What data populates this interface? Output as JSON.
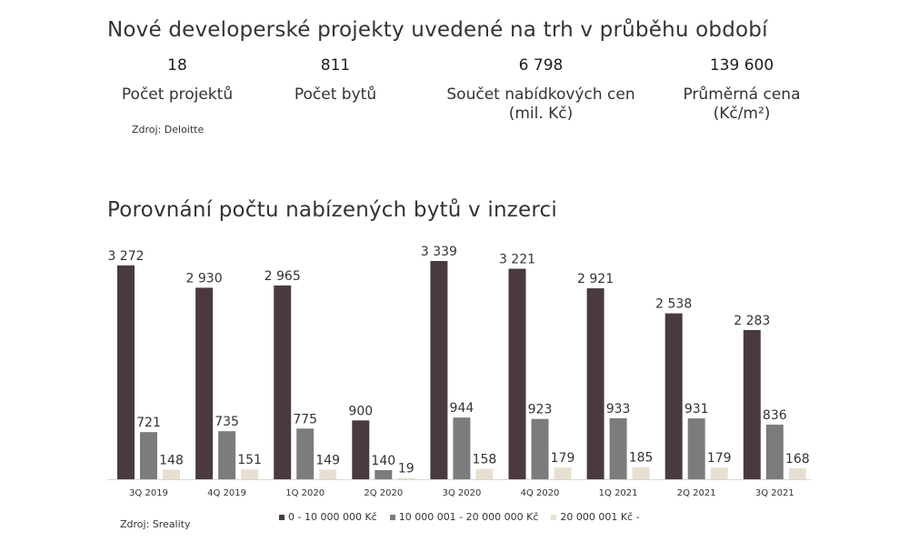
{
  "header": {
    "title": "Nové developerské projekty uvedené na trh v průběhu období",
    "stats": [
      {
        "value": "18",
        "label_lines": [
          "Počet projektů"
        ]
      },
      {
        "value": "811",
        "label_lines": [
          "Počet bytů"
        ]
      },
      {
        "value": "6 798",
        "label_lines": [
          "Součet nabídkových cen",
          "(mil. Kč)"
        ]
      },
      {
        "value": "139 600",
        "label_lines": [
          "Průměrná cena",
          "(Kč/m²)"
        ]
      }
    ],
    "source": "Zdroj: Deloitte"
  },
  "chart_section": {
    "title": "Porovnání počtu nabízených bytů v inzerci",
    "source": "Zdroj: Sreality"
  },
  "chart_data": {
    "type": "bar",
    "categories": [
      "3Q 2019",
      "4Q 2019",
      "1Q 2020",
      "2Q 2020",
      "3Q 2020",
      "4Q 2020",
      "1Q 2021",
      "2Q 2021",
      "3Q 2021"
    ],
    "series": [
      {
        "name": "0 - 10 000 000 Kč",
        "color": "#4a3a3f",
        "values": [
          3272,
          2930,
          2965,
          900,
          3339,
          3221,
          2921,
          2538,
          2283
        ],
        "labels": [
          "3 272",
          "2 930",
          "2 965",
          "900",
          "3 339",
          "3 221",
          "2 921",
          "2 538",
          "2 283"
        ]
      },
      {
        "name": "10 000 001 - 20 000 000 Kč",
        "color": "#7c7c7c",
        "values": [
          721,
          735,
          775,
          140,
          944,
          923,
          933,
          931,
          836
        ],
        "labels": [
          "721",
          "735",
          "775",
          "140",
          "944",
          "923",
          "933",
          "931",
          "836"
        ]
      },
      {
        "name": "20 000 001 Kč -",
        "color": "#e7e0d0",
        "values": [
          148,
          151,
          149,
          19,
          158,
          179,
          185,
          179,
          168
        ],
        "labels": [
          "148",
          "151",
          "149",
          "19",
          "158",
          "179",
          "185",
          "179",
          "168"
        ]
      }
    ],
    "ylim": [
      0,
      3339
    ],
    "grid": false,
    "legend_position": "bottom"
  }
}
